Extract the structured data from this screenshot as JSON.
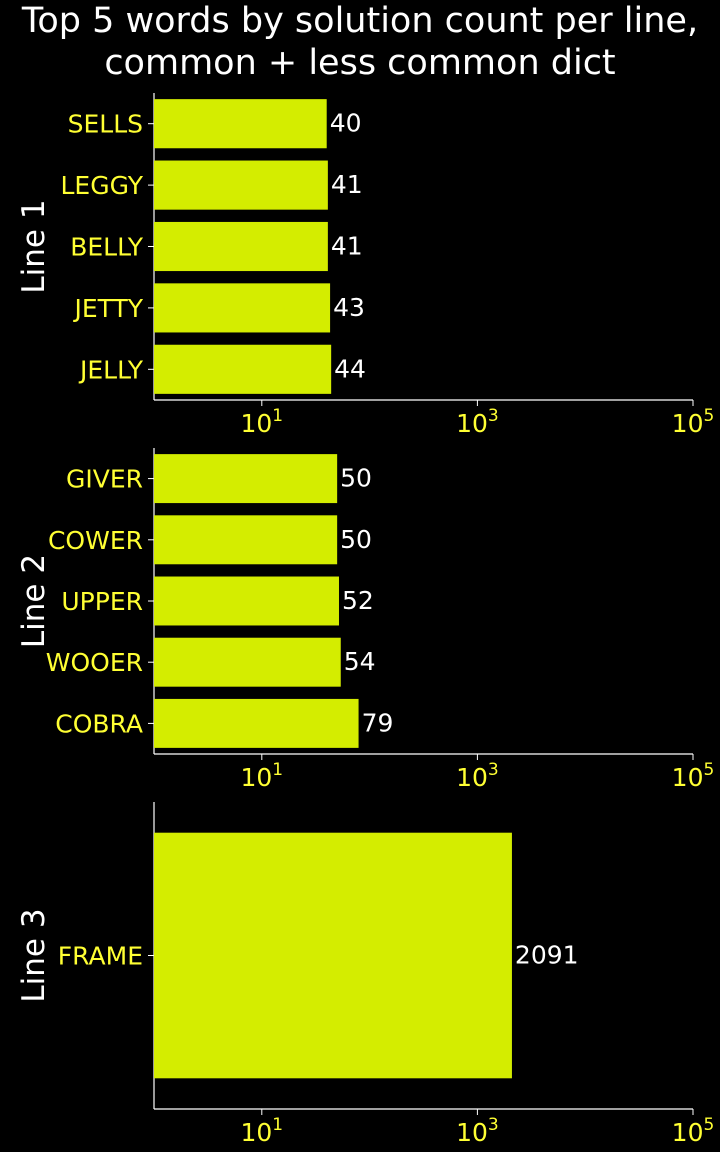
{
  "chart_data": {
    "type": "bar",
    "orientation": "horizontal",
    "title": "Top 5 words by solution count per line,\ncommon + less common dict",
    "x_scale": "log",
    "xlim": [
      1,
      100000
    ],
    "x_ticks": [
      {
        "base": "10",
        "exp": "1",
        "value": 10
      },
      {
        "base": "10",
        "exp": "3",
        "value": 1000
      },
      {
        "base": "10",
        "exp": "5",
        "value": 100000
      }
    ],
    "colors": {
      "bar": "#d4ed00",
      "label": "#ffff33",
      "value": "#ffffff",
      "axis": "#ffffff",
      "background": "#000000"
    },
    "panels": [
      {
        "ylabel": "Line 1",
        "categories": [
          "SELLS",
          "LEGGY",
          "BELLY",
          "JETTY",
          "JELLY"
        ],
        "values": [
          40,
          41,
          41,
          43,
          44
        ]
      },
      {
        "ylabel": "Line 2",
        "categories": [
          "GIVER",
          "COWER",
          "UPPER",
          "WOOER",
          "COBRA"
        ],
        "values": [
          50,
          50,
          52,
          54,
          79
        ]
      },
      {
        "ylabel": "Line 3",
        "categories": [
          "FRAME"
        ],
        "values": [
          2091
        ]
      }
    ]
  }
}
